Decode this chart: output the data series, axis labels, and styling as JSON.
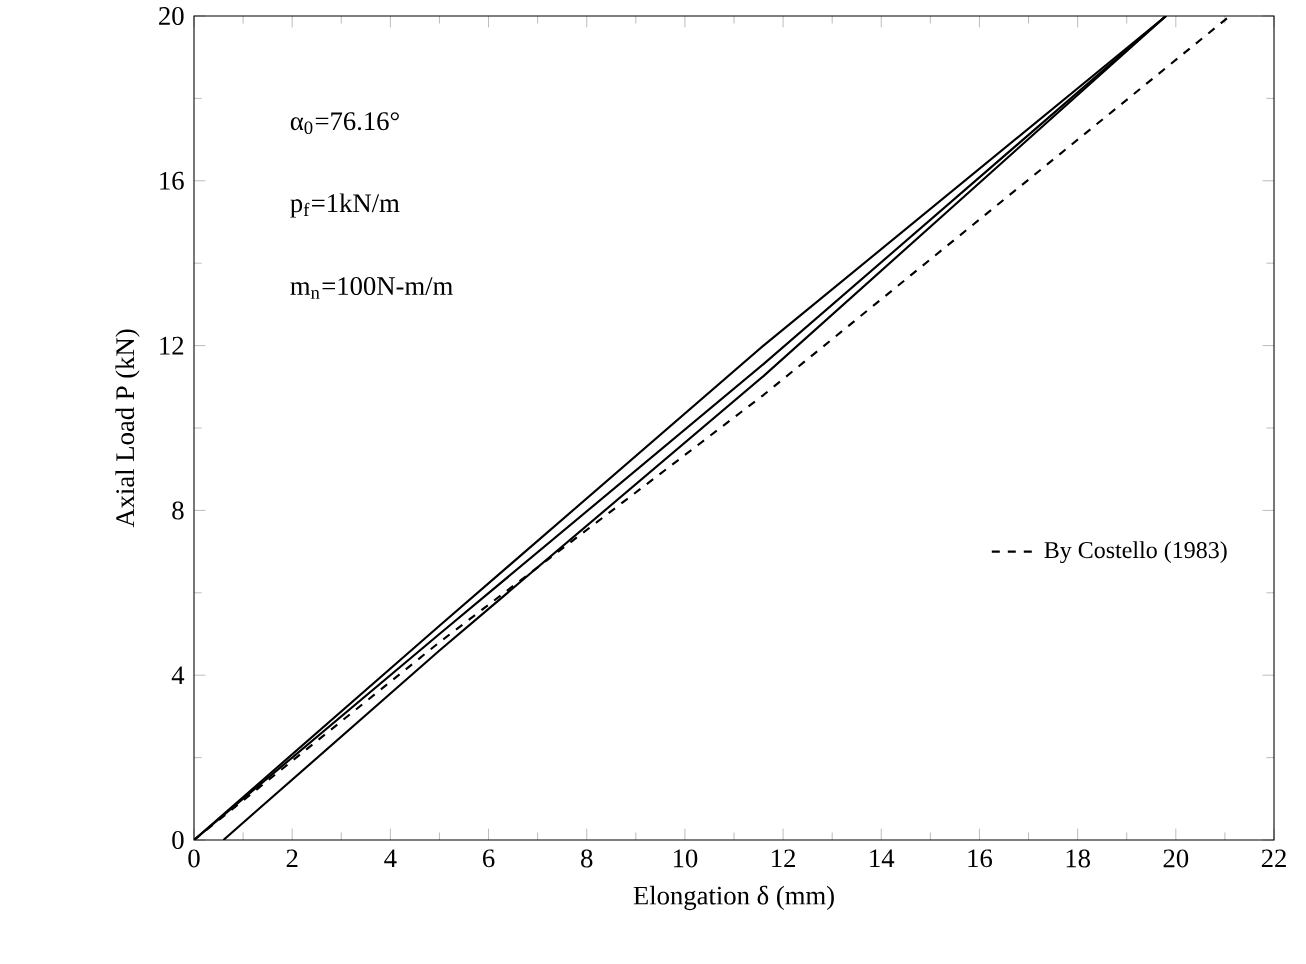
{
  "chart_data": {
    "type": "line",
    "xlabel": "Elongation δ (mm)",
    "ylabel": "Axial Load P (kN)",
    "xlim": [
      0,
      22
    ],
    "xticks": [
      0,
      2,
      4,
      6,
      8,
      10,
      12,
      14,
      16,
      18,
      20,
      22
    ],
    "ylim": [
      0,
      20
    ],
    "yticks": [
      0,
      4,
      8,
      12,
      16,
      20
    ],
    "grid": false,
    "legend": "right",
    "marker": "none",
    "series": [
      {
        "color": "#000000",
        "line_style": "solid",
        "x": [
          0,
          5,
          11.6,
          19.8
        ],
        "values": [
          0,
          5.2,
          12.0,
          20
        ]
      },
      {
        "color": "#000000",
        "line_style": "solid",
        "x": [
          0,
          5,
          11.6,
          19.8
        ],
        "values": [
          0,
          5.0,
          11.55,
          20
        ]
      },
      {
        "color": "#000000",
        "line_style": "solid",
        "x": [
          0.6,
          5,
          11.6,
          19.8
        ],
        "values": [
          0,
          4.6,
          11.26,
          20
        ]
      },
      {
        "name": "By Costello (1983)",
        "color": "#000000",
        "line_style": "dashed",
        "x": [
          0,
          5,
          11.6,
          21.1
        ],
        "values": [
          0,
          4.8,
          10.8,
          20
        ]
      }
    ],
    "annotations": [
      "α$_{0}$=76.16°",
      "p$_{f}$=1kN/m",
      "m$_{n}$=100N-m/m"
    ]
  }
}
